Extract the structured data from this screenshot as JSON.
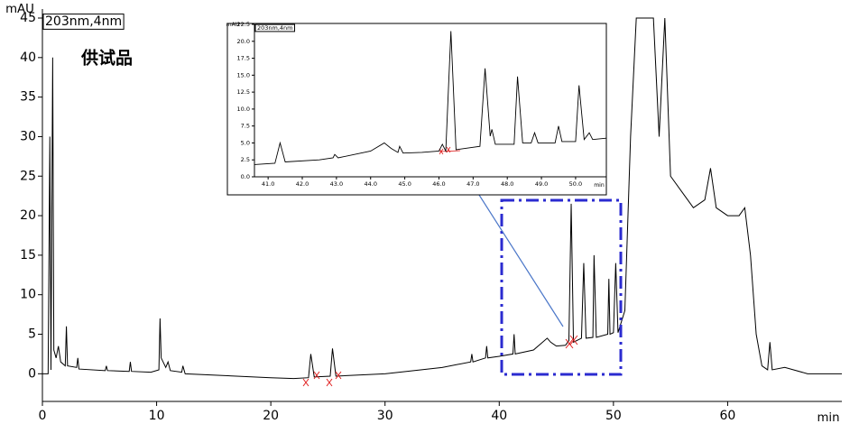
{
  "chart_data": [
    {
      "type": "line",
      "ylabel": "mAU",
      "xlabel": "min",
      "annotation": "供试品",
      "xlim": [
        0,
        70
      ],
      "ylim": [
        -3.5,
        45
      ],
      "xticks": [
        0,
        10,
        20,
        30,
        40,
        50,
        60
      ],
      "yticks": [
        0,
        5,
        10,
        15,
        20,
        25,
        30,
        35,
        40,
        45
      ],
      "x": [
        0,
        0.5,
        0.65,
        0.75,
        0.9,
        1.0,
        1.2,
        1.4,
        1.6,
        2.0,
        2.1,
        2.2,
        3.0,
        3.1,
        3.2,
        5.5,
        5.6,
        5.7,
        7.6,
        7.7,
        7.8,
        9.5,
        10.2,
        10.3,
        10.4,
        10.8,
        11.0,
        11.2,
        12.2,
        12.3,
        12.5,
        20,
        22,
        23.3,
        23.5,
        23.8,
        25.2,
        25.4,
        25.7,
        30,
        35,
        37.5,
        37.6,
        37.7,
        38.8,
        38.9,
        39,
        40,
        41.2,
        41.3,
        41.4,
        43,
        44.2,
        44.5,
        45,
        45.8,
        46.1,
        46.3,
        46.5,
        47.2,
        47.4,
        47.6,
        48.2,
        48.3,
        48.5,
        49.5,
        49.6,
        49.7,
        50.0,
        50.2,
        50.4,
        51,
        51.5,
        52,
        52.5,
        53,
        53.5,
        54,
        54.5,
        55,
        56,
        57,
        58,
        58.5,
        59,
        60,
        61,
        61.5,
        62,
        62.5,
        63,
        63.5,
        63.7,
        63.9,
        65,
        67,
        70
      ],
      "series": [
        {
          "name": "203nm,4nm",
          "color": "#000000",
          "values": [
            0,
            0,
            30,
            0.5,
            40,
            3,
            2,
            3.5,
            1.5,
            1,
            6,
            1,
            0.8,
            2,
            0.6,
            0.4,
            1,
            0.4,
            0.3,
            1.5,
            0.3,
            0.2,
            0.5,
            7,
            2,
            0.8,
            1.5,
            0.4,
            0.2,
            1,
            0,
            -0.5,
            -0.6,
            -0.5,
            2.5,
            -0.4,
            -0.3,
            3.2,
            -0.3,
            0,
            0.8,
            1.5,
            2.5,
            1.5,
            2,
            3.5,
            2,
            2.2,
            2.5,
            5,
            2.5,
            3,
            4.5,
            4,
            3.5,
            3.6,
            4.2,
            21.5,
            4,
            4.5,
            14,
            4.5,
            4.6,
            15,
            4.6,
            5,
            12,
            5,
            5.2,
            14,
            5.2,
            8,
            30,
            45,
            45,
            45,
            45,
            30,
            45,
            25,
            23,
            21,
            22,
            26,
            21,
            20,
            20,
            21,
            15,
            5,
            1,
            0.5,
            4,
            0.5,
            0.8,
            0,
            0
          ]
        }
      ]
    },
    {
      "type": "line",
      "ylabel": "mAU",
      "xlabel": "min",
      "xlim": [
        40.6,
        50.9
      ],
      "ylim": [
        0,
        22.5
      ],
      "xticks": [
        {
          "value": 41,
          "label": "41.0"
        },
        {
          "value": 42,
          "label": "42.0"
        },
        {
          "value": 43,
          "label": "43.0"
        },
        {
          "value": 44,
          "label": "44.0"
        },
        {
          "value": 45,
          "label": "45.0"
        },
        {
          "value": 46,
          "label": "46.0"
        },
        {
          "value": 47,
          "label": "47.0"
        },
        {
          "value": 48,
          "label": "48.0"
        },
        {
          "value": 49,
          "label": "49.0"
        },
        {
          "value": 50,
          "label": "50.0"
        }
      ],
      "yticks": [
        {
          "value": 0,
          "label": "0.0"
        },
        {
          "value": 2.5,
          "label": "2.5"
        },
        {
          "value": 5,
          "label": "5.0"
        },
        {
          "value": 7.5,
          "label": "7.5"
        },
        {
          "value": 10,
          "label": "10.0"
        },
        {
          "value": 12.5,
          "label": "12.5"
        },
        {
          "value": 15,
          "label": "15.0"
        },
        {
          "value": 17.5,
          "label": "17.5"
        },
        {
          "value": 20,
          "label": "20.0"
        },
        {
          "value": 22.5,
          "label": "22.5"
        }
      ],
      "x": [
        40.6,
        41.2,
        41.35,
        41.5,
        42.5,
        42.9,
        42.95,
        43.05,
        44,
        44.4,
        44.6,
        44.8,
        44.85,
        44.95,
        45.5,
        46,
        46.1,
        46.2,
        46.35,
        46.5,
        47.2,
        47.35,
        47.5,
        47.55,
        47.65,
        48.2,
        48.3,
        48.45,
        48.7,
        48.8,
        48.9,
        49.4,
        49.5,
        49.6,
        50.0,
        50.1,
        50.25,
        50.4,
        50.5,
        50.9
      ],
      "series": [
        {
          "name": "203nm,4nm",
          "color": "#000000",
          "values": [
            1.8,
            2,
            5,
            2.2,
            2.5,
            2.8,
            3.3,
            2.8,
            3.8,
            5,
            4.2,
            3.6,
            4.5,
            3.5,
            3.6,
            3.8,
            4.8,
            3.8,
            21.5,
            4,
            4.5,
            16,
            6,
            7,
            4.8,
            4.8,
            14.8,
            5,
            5,
            6.5,
            5,
            5,
            7.5,
            5.2,
            5.2,
            13.5,
            5.5,
            6.5,
            5.5,
            5.7
          ]
        }
      ]
    }
  ]
}
